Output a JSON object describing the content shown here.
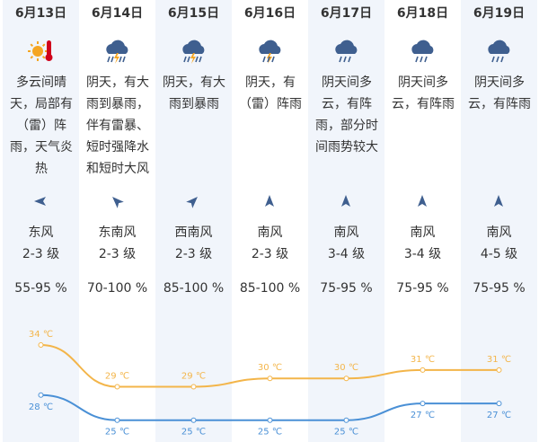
{
  "days": [
    {
      "date": "6月13日",
      "description": "多云间晴天，局部有（雷）阵雨，天气炎热",
      "wind": "东风",
      "level": "2-3 级",
      "humidity": "55-95 %"
    },
    {
      "date": "6月14日",
      "description": "阴天，有大雨到暴雨，伴有雷暴、短时强降水和短时大风",
      "wind": "东南风",
      "level": "2-3 级",
      "humidity": "70-100 %"
    },
    {
      "date": "6月15日",
      "description": "阴天，有大雨到暴雨",
      "wind": "西南风",
      "level": "2-3 级",
      "humidity": "85-100 %"
    },
    {
      "date": "6月16日",
      "description": "阴天，有（雷）阵雨",
      "wind": "南风",
      "level": "2-3 级",
      "humidity": "85-100 %"
    },
    {
      "date": "6月17日",
      "description": "阴天间多云，有阵雨，部分时间雨势较大",
      "wind": "南风",
      "level": "3-4 级",
      "humidity": "75-95 %"
    },
    {
      "date": "6月18日",
      "description": "阴天间多云，有阵雨",
      "wind": "南风",
      "level": "3-4 级",
      "humidity": "75-95 %"
    },
    {
      "date": "6月19日",
      "description": "阴天间多云，有阵雨",
      "wind": "南风",
      "level": "4-5 级",
      "humidity": "75-95 %"
    }
  ],
  "temperature": {
    "high": {
      "color": "#f3b54a",
      "values": [
        34,
        29,
        29,
        30,
        30,
        31,
        31
      ],
      "value_labels": [
        "34 ℃",
        "29 ℃",
        "29 ℃",
        "30 ℃",
        "30 ℃",
        "31 ℃",
        "31 ℃"
      ]
    },
    "low": {
      "color": "#4a90d6",
      "values": [
        28,
        25,
        25,
        25,
        25,
        27,
        27
      ],
      "value_labels": [
        "28 ℃",
        "25 ℃",
        "25 ℃",
        "25 ℃",
        "25 ℃",
        "27 ℃",
        "27 ℃"
      ]
    }
  }
}
